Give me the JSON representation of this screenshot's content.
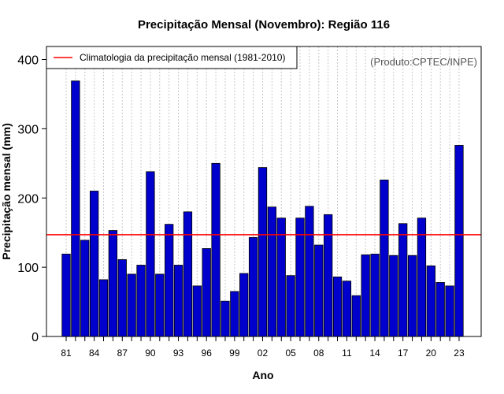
{
  "chart_data": {
    "type": "bar",
    "title": "Precipitação Mensal (Novembro): Região 116",
    "xlabel": "Ano",
    "ylabel": "Precipitação mensal (mm)",
    "ylim": [
      0,
      400
    ],
    "yticks": [
      0,
      100,
      200,
      300,
      400
    ],
    "categories": [
      "81",
      "82",
      "83",
      "84",
      "85",
      "86",
      "87",
      "88",
      "89",
      "90",
      "91",
      "92",
      "93",
      "94",
      "95",
      "96",
      "97",
      "98",
      "99",
      "00",
      "01",
      "02",
      "03",
      "04",
      "05",
      "06",
      "07",
      "08",
      "09",
      "10",
      "11",
      "12",
      "13",
      "14",
      "15",
      "16",
      "17",
      "18",
      "19",
      "20",
      "21",
      "22",
      "23"
    ],
    "xtick_labels": [
      "81",
      "84",
      "87",
      "90",
      "93",
      "96",
      "99",
      "02",
      "05",
      "08",
      "11",
      "14",
      "17",
      "20",
      "23"
    ],
    "values": [
      119,
      369,
      139,
      210,
      82,
      153,
      111,
      90,
      103,
      238,
      90,
      162,
      103,
      180,
      73,
      127,
      250,
      51,
      65,
      91,
      143,
      244,
      187,
      171,
      88,
      171,
      188,
      132,
      176,
      86,
      80,
      59,
      118,
      119,
      226,
      117,
      163,
      117,
      171,
      102,
      78,
      73,
      276
    ],
    "climatology": 147,
    "bar_color": "#0000cc",
    "line_color": "#ff0000",
    "grid": "vertical dotted",
    "legend": {
      "label": "Climatologia da precipitação mensal (1981-2010)",
      "position": "top-left"
    },
    "annotation": "(Produto:CPTEC/INPE)"
  }
}
